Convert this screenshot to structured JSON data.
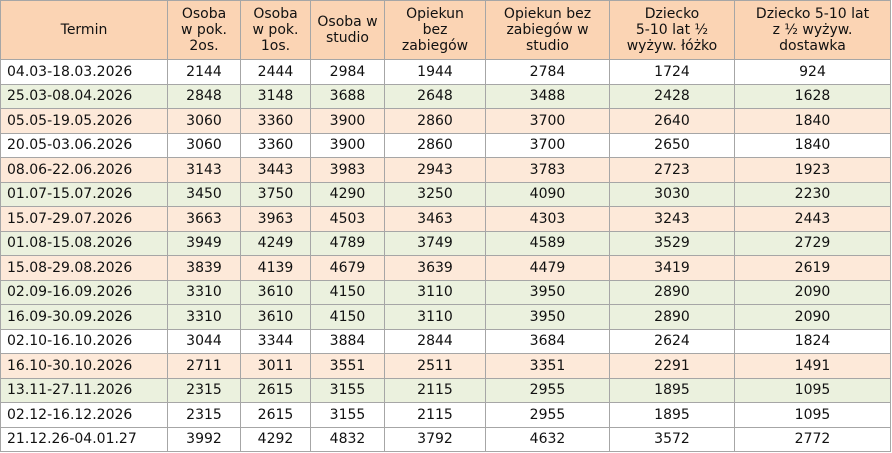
{
  "table": {
    "header": [
      [
        "Termin"
      ],
      [
        "Osoba",
        "w pok.",
        "2os."
      ],
      [
        "Osoba",
        "w pok.",
        "1os."
      ],
      [
        "Osoba w",
        "studio"
      ],
      [
        "Opiekun",
        "bez",
        "zabiegów"
      ],
      [
        "Opiekun bez",
        "zabiegów w",
        "studio"
      ],
      [
        "Dziecko",
        "5-10 lat ½",
        "wyżyw. łóżko"
      ],
      [
        "Dziecko 5-10 lat",
        "z ½ wyżyw.",
        "dostawka"
      ]
    ],
    "rows": [
      [
        "04.03-18.03.2026",
        2144,
        2444,
        2984,
        1944,
        2784,
        1724,
        924
      ],
      [
        "25.03-08.04.2026",
        2848,
        3148,
        3688,
        2648,
        3488,
        2428,
        1628
      ],
      [
        "05.05-19.05.2026",
        3060,
        3360,
        3900,
        2860,
        3700,
        2640,
        1840
      ],
      [
        "20.05-03.06.2026",
        3060,
        3360,
        3900,
        2860,
        3700,
        2650,
        1840
      ],
      [
        "08.06-22.06.2026",
        3143,
        3443,
        3983,
        2943,
        3783,
        2723,
        1923
      ],
      [
        "01.07-15.07.2026",
        3450,
        3750,
        4290,
        3250,
        4090,
        3030,
        2230
      ],
      [
        "15.07-29.07.2026",
        3663,
        3963,
        4503,
        3463,
        4303,
        3243,
        2443
      ],
      [
        "01.08-15.08.2026",
        3949,
        4249,
        4789,
        3749,
        4589,
        3529,
        2729
      ],
      [
        "15.08-29.08.2026",
        3839,
        4139,
        4679,
        3639,
        4479,
        3419,
        2619
      ],
      [
        "02.09-16.09.2026",
        3310,
        3610,
        4150,
        3110,
        3950,
        2890,
        2090
      ],
      [
        "16.09-30.09.2026",
        3310,
        3610,
        4150,
        3110,
        3950,
        2890,
        2090
      ],
      [
        "02.10-16.10.2026",
        3044,
        3344,
        3884,
        2844,
        3684,
        2624,
        1824
      ],
      [
        "16.10-30.10.2026",
        2711,
        3011,
        3551,
        2511,
        3351,
        2291,
        1491
      ],
      [
        "13.11-27.11.2026",
        2315,
        2615,
        3155,
        2115,
        2955,
        1895,
        1095
      ],
      [
        "02.12-16.12.2026",
        2315,
        2615,
        3155,
        2115,
        2955,
        1895,
        1095
      ],
      [
        "21.12.26-04.01.27",
        3992,
        4292,
        4832,
        3792,
        4632,
        3572,
        2772
      ]
    ]
  }
}
